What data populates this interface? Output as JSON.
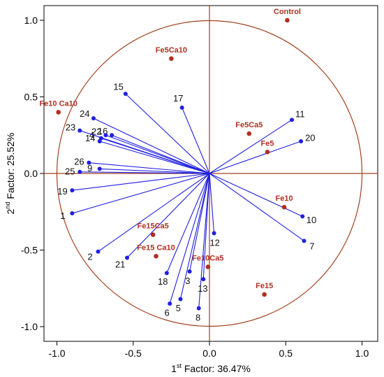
{
  "chart_data": {
    "type": "scatter",
    "subtype": "pca-biplot",
    "xlabel": {
      "pre": "1",
      "sup": "st",
      "post": " Factor: 36.47%"
    },
    "ylabel": {
      "pre": "2",
      "sup": "nd",
      "post": " Factor: 25.52%"
    },
    "xlim": [
      -1.1,
      1.1
    ],
    "ylim": [
      -1.1,
      1.1
    ],
    "x_ticks": [
      "-1.0",
      "-0.5",
      "0.0",
      "0.5",
      "1.0"
    ],
    "y_ticks": [
      "1.0",
      "0.5",
      "0.0",
      "-0.5",
      "-1.0"
    ],
    "unit_circle": true,
    "colors": {
      "vectors": "#1f1fe0",
      "treatments": "#b03020",
      "circle": "#a0401c",
      "axes": "#a0401c"
    },
    "variables": [
      {
        "label": "1",
        "x": -0.9,
        "y": -0.26
      },
      {
        "label": "2",
        "x": -0.73,
        "y": -0.51
      },
      {
        "label": "3",
        "x": -0.13,
        "y": -0.64
      },
      {
        "label": "4",
        "x": -0.71,
        "y": 0.23
      },
      {
        "label": "5",
        "x": -0.19,
        "y": -0.82
      },
      {
        "label": "6",
        "x": -0.26,
        "y": -0.85
      },
      {
        "label": "7",
        "x": 0.62,
        "y": -0.44
      },
      {
        "label": "8",
        "x": -0.07,
        "y": -0.88
      },
      {
        "label": "9",
        "x": -0.72,
        "y": 0.03
      },
      {
        "label": "10",
        "x": 0.61,
        "y": -0.28
      },
      {
        "label": "11",
        "x": 0.54,
        "y": 0.35
      },
      {
        "label": "12",
        "x": 0.03,
        "y": -0.39
      },
      {
        "label": "13",
        "x": -0.04,
        "y": -0.69
      },
      {
        "label": "14",
        "x": -0.72,
        "y": 0.21
      },
      {
        "label": "15",
        "x": -0.55,
        "y": 0.52
      },
      {
        "label": "16",
        "x": -0.64,
        "y": 0.25
      },
      {
        "label": "17",
        "x": -0.18,
        "y": 0.43
      },
      {
        "label": "18",
        "x": -0.28,
        "y": -0.65
      },
      {
        "label": "19",
        "x": -0.9,
        "y": -0.11
      },
      {
        "label": "20",
        "x": 0.6,
        "y": 0.21
      },
      {
        "label": "21",
        "x": -0.54,
        "y": -0.55
      },
      {
        "label": "22",
        "x": -0.68,
        "y": 0.25
      },
      {
        "label": "23",
        "x": -0.85,
        "y": 0.28
      },
      {
        "label": "24",
        "x": -0.76,
        "y": 0.36
      },
      {
        "label": "25",
        "x": -0.85,
        "y": 0.01
      },
      {
        "label": "26",
        "x": -0.79,
        "y": 0.07
      }
    ],
    "treatments": [
      {
        "label": "Control",
        "x": 0.51,
        "y": 1.0
      },
      {
        "label": "Fe5Ca10",
        "x": -0.25,
        "y": 0.75
      },
      {
        "label": "Fe10 Ca10",
        "x": -0.99,
        "y": 0.4
      },
      {
        "label": "Fe5Ca5",
        "x": 0.26,
        "y": 0.26
      },
      {
        "label": "Fe5",
        "x": 0.38,
        "y": 0.14
      },
      {
        "label": "Fe10",
        "x": 0.49,
        "y": -0.22
      },
      {
        "label": "Fe15Ca5",
        "x": -0.37,
        "y": -0.4
      },
      {
        "label": "Fe15 Ca10",
        "x": -0.35,
        "y": -0.54
      },
      {
        "label": "Fe10Ca5",
        "x": -0.01,
        "y": -0.61
      },
      {
        "label": "Fe15",
        "x": 0.36,
        "y": -0.79
      }
    ]
  }
}
